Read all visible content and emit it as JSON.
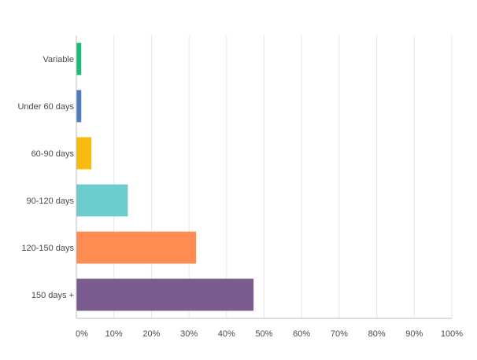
{
  "chart_data": {
    "type": "bar",
    "orientation": "horizontal",
    "categories": [
      "Variable",
      "Under 60 days",
      "60-90 days",
      "90-120 days",
      "120-150 days",
      "150 days +"
    ],
    "values": [
      1.2,
      1.2,
      3.9,
      13.6,
      31.8,
      47.1
    ],
    "colors": [
      "#1abc79",
      "#4f7cbf",
      "#f7bc0e",
      "#6ccbcc",
      "#ff8c52",
      "#7b5c91"
    ],
    "xlim": [
      0,
      100
    ],
    "xticks": [
      "0%",
      "10%",
      "20%",
      "30%",
      "40%",
      "50%",
      "60%",
      "70%",
      "80%",
      "90%",
      "100%"
    ],
    "tick_values": [
      0,
      10,
      20,
      30,
      40,
      50,
      60,
      70,
      80,
      90,
      100
    ],
    "grid": true,
    "title": "",
    "xlabel": "",
    "ylabel": ""
  }
}
